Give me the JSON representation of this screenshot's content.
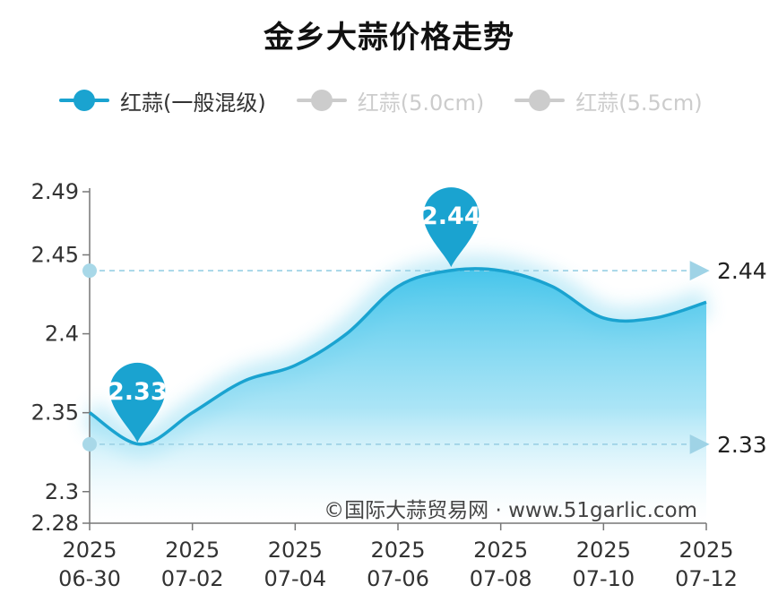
{
  "title": "金乡大蒜价格走势",
  "legend": [
    {
      "label": "红蒜(一般混级)",
      "color": "#1aa3d0",
      "active": true
    },
    {
      "label": "红蒜(5.0cm)",
      "color": "#cccccc",
      "active": false
    },
    {
      "label": "红蒜(5.5cm)",
      "color": "#cccccc",
      "active": false
    }
  ],
  "watermark": "©国际大蒜贸易网 · www.51garlic.com",
  "colors": {
    "line": "#1aa3d0",
    "area": "#3fc3ea",
    "pin": "#1aa3d0",
    "grid": "#9fd3e6"
  },
  "chart_data": {
    "type": "area",
    "title": "金乡大蒜价格走势",
    "xlabel": "",
    "ylabel": "",
    "ylim": [
      2.28,
      2.49
    ],
    "yticks": [
      "2.49",
      "2.45",
      "2.4",
      "2.35",
      "2.3",
      "2.28"
    ],
    "xticks": [
      {
        "year": "2025",
        "date": "06-30"
      },
      {
        "year": "2025",
        "date": "07-02"
      },
      {
        "year": "2025",
        "date": "07-04"
      },
      {
        "year": "2025",
        "date": "07-06"
      },
      {
        "year": "2025",
        "date": "07-08"
      },
      {
        "year": "2025",
        "date": "07-10"
      },
      {
        "year": "2025",
        "date": "07-12"
      }
    ],
    "series": [
      {
        "name": "红蒜(一般混级)",
        "x": [
          "06-30",
          "07-01",
          "07-02",
          "07-03",
          "07-04",
          "07-05",
          "07-06",
          "07-07",
          "07-08",
          "07-09",
          "07-10",
          "07-11",
          "07-12"
        ],
        "values": [
          2.35,
          2.33,
          2.35,
          2.37,
          2.38,
          2.4,
          2.43,
          2.44,
          2.44,
          2.43,
          2.41,
          2.41,
          2.42
        ]
      }
    ],
    "max_label": "2.44",
    "min_label": "2.33",
    "markline_max": "2.44",
    "markline_min": "2.33"
  }
}
